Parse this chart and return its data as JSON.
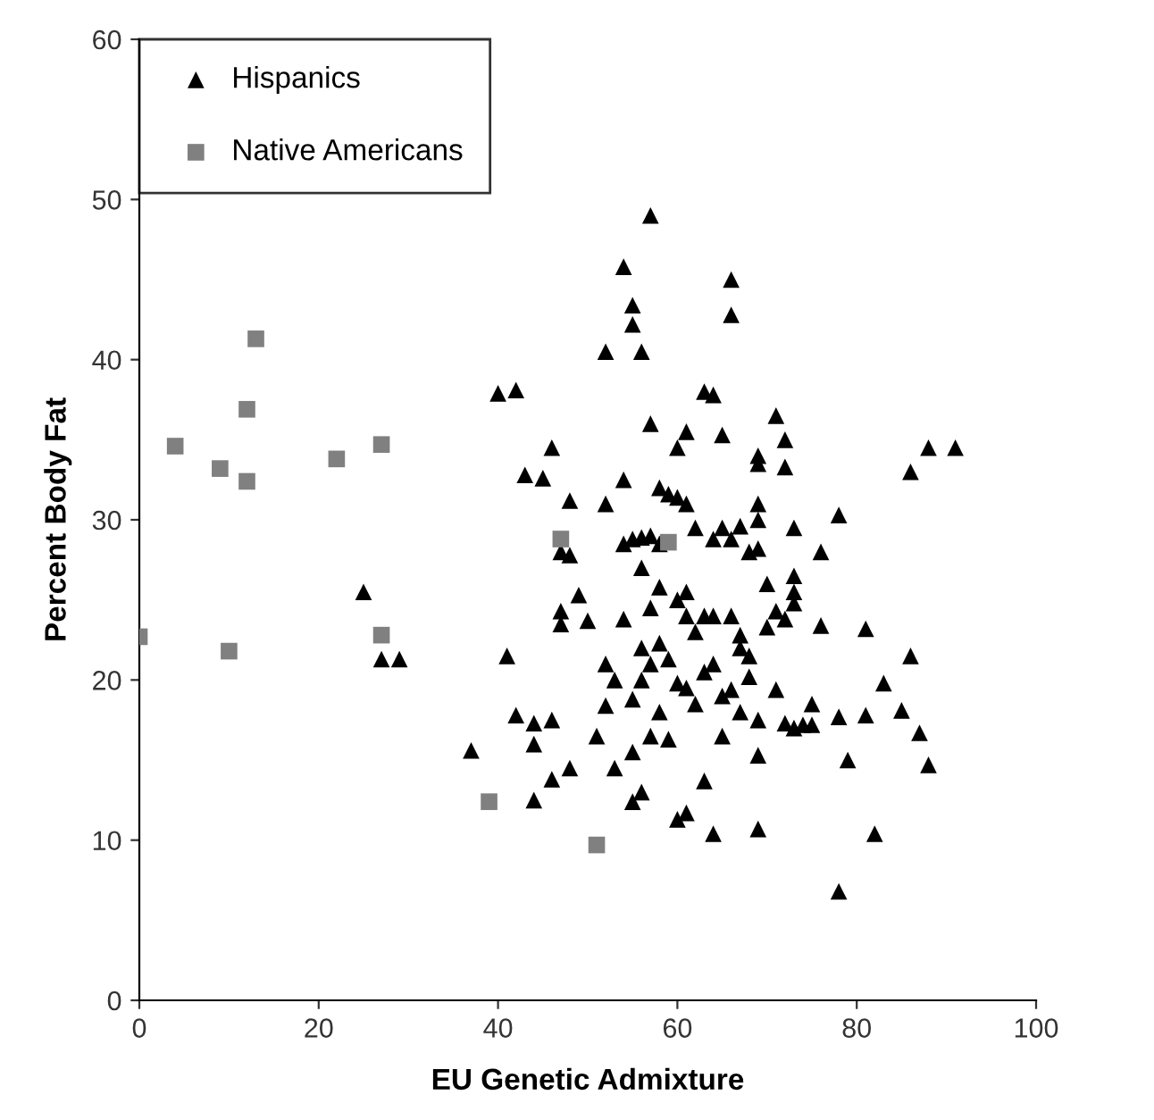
{
  "chart_data": {
    "type": "scatter",
    "xlabel": "EU Genetic Admixture",
    "ylabel": "Percent Body Fat",
    "xlim": [
      0,
      100
    ],
    "ylim": [
      0,
      60
    ],
    "xticks": [
      0,
      20,
      40,
      60,
      80,
      100
    ],
    "yticks": [
      0,
      10,
      20,
      30,
      40,
      50,
      60
    ],
    "grid": false,
    "legend": "top left",
    "series": [
      {
        "name": "Hispanics",
        "color": "#000000",
        "marker": "triangle",
        "x": [
          25,
          27,
          29,
          37,
          40,
          42,
          41,
          42,
          43,
          44,
          44,
          44,
          45,
          46,
          46,
          46,
          47,
          47,
          47,
          48,
          48,
          48,
          49,
          50,
          51,
          52,
          52,
          52,
          52,
          53,
          53,
          54,
          54,
          54,
          54,
          55,
          55,
          55,
          55,
          55,
          55,
          56,
          56,
          56,
          56,
          56,
          56,
          57,
          57,
          57,
          57,
          57,
          57,
          58,
          58,
          58,
          58,
          58,
          59,
          59,
          59,
          60,
          60,
          60,
          60,
          60,
          61,
          61,
          61,
          61,
          61,
          61,
          62,
          62,
          62,
          63,
          63,
          63,
          63,
          64,
          64,
          64,
          64,
          64,
          65,
          65,
          65,
          65,
          66,
          66,
          66,
          66,
          66,
          67,
          67,
          67,
          67,
          68,
          68,
          68,
          69,
          69,
          69,
          69,
          69,
          69,
          69,
          69,
          70,
          70,
          71,
          71,
          71,
          72,
          72,
          72,
          72,
          73,
          73,
          73,
          73,
          73,
          74,
          75,
          75,
          76,
          76,
          78,
          78,
          78,
          79,
          81,
          81,
          82,
          83,
          85,
          86,
          86,
          87,
          88,
          88,
          91
        ],
        "values": [
          25.5,
          21.3,
          21.3,
          15.6,
          37.9,
          38.1,
          21.5,
          17.8,
          32.8,
          17.3,
          16,
          12.5,
          32.6,
          17.5,
          34.5,
          13.8,
          28,
          24.3,
          23.5,
          31.2,
          27.8,
          14.5,
          25.3,
          23.7,
          16.5,
          40.5,
          31,
          21,
          18.4,
          20,
          14.5,
          45.8,
          32.5,
          28.5,
          23.8,
          43.4,
          42.2,
          28.8,
          18.8,
          15.5,
          12.4,
          40.5,
          28.9,
          27,
          22,
          20,
          13,
          49,
          36,
          29,
          24.5,
          21,
          16.5,
          32,
          28.5,
          25.8,
          22.3,
          18,
          31.6,
          21.3,
          16.3,
          34.5,
          31.4,
          25,
          19.8,
          11.3,
          35.5,
          31,
          25.5,
          24,
          19.5,
          11.7,
          29.5,
          23,
          18.5,
          38,
          24,
          20.5,
          13.7,
          37.8,
          28.8,
          24,
          21,
          10.4,
          35.3,
          29.5,
          19,
          16.5,
          45,
          42.8,
          28.8,
          24,
          19.4,
          29.6,
          22.8,
          22,
          18,
          28,
          21.5,
          20.2,
          34,
          33.5,
          31,
          30,
          28.2,
          17.5,
          15.3,
          10.7,
          26,
          23.3,
          36.5,
          24.3,
          19.4,
          35,
          33.3,
          23.8,
          17.3,
          29.5,
          26.5,
          25.5,
          24.8,
          17,
          17.2,
          18.5,
          17.2,
          28,
          23.4,
          30.3,
          17.7,
          6.8,
          15,
          23.2,
          17.8,
          10.4,
          19.8,
          18.1,
          33,
          21.5,
          16.7,
          34.5,
          14.7,
          34.5
        ]
      },
      {
        "name": "Native Americans",
        "color": "#808080",
        "marker": "square",
        "x": [
          0,
          4,
          9,
          10,
          12,
          12,
          13,
          22,
          27,
          27,
          39,
          47,
          51,
          59
        ],
        "values": [
          22.7,
          34.6,
          33.2,
          21.8,
          36.9,
          32.4,
          41.3,
          33.8,
          34.7,
          22.8,
          12.4,
          28.8,
          9.7,
          28.6
        ]
      }
    ]
  }
}
